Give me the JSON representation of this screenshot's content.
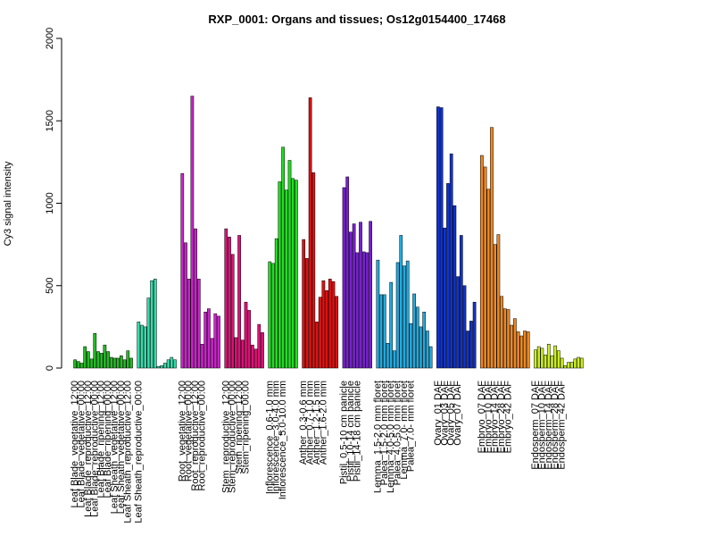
{
  "chart_data": {
    "type": "bar",
    "title": "RXP_0001: Organs and tissues; Os12g0154400_17468",
    "xlabel": "",
    "ylabel": "Cy3 signal intensity",
    "ylim": [
      0,
      2000
    ],
    "yticks": [
      0,
      500,
      1000,
      1500,
      2000
    ],
    "grid": false,
    "legend": "none",
    "groups": [
      {
        "color": "#22bb22",
        "label_stride": 2,
        "values": [
          50,
          40,
          30,
          130,
          100,
          55,
          210,
          100,
          90,
          140,
          100,
          65,
          60,
          60,
          75,
          50,
          105,
          60
        ],
        "labels": [
          "Leaf Blade_vegetative_12:00",
          "Leaf Blade_vegetative_00:00",
          "Leaf Blade_reproductive_12:00",
          "Leaf Blade_reproductive_00:00",
          "Leaf Blade_ripening_12:00",
          "Leaf Blade_ripening_00:00",
          "Leaf Sheath_vegetative_12:00",
          "Leaf Sheath_vegetative_00:00",
          "Leaf Sheath_reproductive_12:00"
        ]
      },
      {
        "color": "#33ddaa",
        "label_stride": 2,
        "values": [
          280,
          260,
          250,
          425,
          530,
          540,
          10,
          15,
          30,
          50,
          65,
          50
        ],
        "labels": [
          "Leaf Sheath_reproductive_00:00"
        ]
      },
      {
        "color": "#cc22cc",
        "label_stride": 2,
        "values": [
          1180,
          760,
          540,
          1650,
          845,
          540,
          145,
          340,
          360,
          180,
          330,
          315
        ],
        "labels": [
          "Root_vegetative_12:00",
          "Root_vegetative_00:00",
          "Root_reproductive_12:00",
          "Root_reproductive_00:00"
        ]
      },
      {
        "color": "#dd1177",
        "label_stride": 2,
        "values": [
          845,
          795,
          690,
          185,
          805,
          170,
          400,
          350,
          140,
          115,
          265,
          215
        ],
        "labels": [
          "Stem_reproductive_12:00",
          "Stem_reproductive_00:00",
          "Stem_ripening_12:00",
          "Stem_ripening_00:00"
        ]
      },
      {
        "color": "#22dd22",
        "label_stride": 2,
        "values": [
          645,
          635,
          785,
          1130,
          1340,
          1080,
          1260,
          1150,
          1140
        ],
        "labels": [
          "Inflorescence_0.6-1.0 mm",
          "Inflorescence_3.0-4.0 mm",
          "Inflorescence_5.0-10.0 mm"
        ]
      },
      {
        "color": "#dd1111",
        "label_stride": 2,
        "values": [
          780,
          665,
          1640,
          1185,
          280,
          430,
          530,
          470,
          540,
          525,
          435
        ],
        "labels": [
          "Anther_0.3-0.6 mm",
          "Anther_0.7-1.0 mm",
          "Anther_1.2-1.5 mm",
          "Anther_1.6-2.0 mm"
        ]
      },
      {
        "color": "#7722cc",
        "label_stride": 2,
        "values": [
          1095,
          1160,
          825,
          875,
          700,
          885,
          705,
          700,
          890
        ],
        "labels": [
          "Pistil_0.5-10 cm panicle",
          "Pistil_10-14 cm panicle",
          "Pistil_14-18 cm panicle"
        ]
      },
      {
        "color": "#22aadd",
        "label_stride": 2,
        "values": [
          655,
          445,
          445,
          150,
          520,
          105,
          640,
          805,
          620,
          650,
          270,
          450,
          370,
          250,
          340,
          225,
          130
        ],
        "labels": [
          "Lemma_1.5-2.0 mm floret",
          "Palea_1.5-2.0 mm floret",
          "Lemma_4.0-5.0 mm floret",
          "Palea_4.0-5.0 mm floret",
          "Lemma_7.0- mm floret",
          "Palea_7.0- mm floret"
        ]
      },
      {
        "color": "#1133cc",
        "label_stride": 2,
        "values": [
          1585,
          1580,
          850,
          1120,
          1300,
          985,
          555,
          805,
          500,
          225,
          285,
          400
        ],
        "labels": [
          "Ovary_01 DAF",
          "Ovary_03 DAF",
          "Ovary_05 DAF",
          "Ovary_07 DAF"
        ]
      },
      {
        "color": "#ee8822",
        "label_stride": 2,
        "values": [
          1290,
          1220,
          1085,
          1460,
          750,
          810,
          435,
          360,
          355,
          260,
          300,
          220,
          195,
          225,
          220
        ],
        "labels": [
          "Embryo_07 DAF",
          "Embryo_10 DAF",
          "Embryo_14 DAF",
          "Embryo_28 DAF",
          "Embryo_42 DAF"
        ]
      },
      {
        "color": "#ccee22",
        "label_stride": 2,
        "values": [
          110,
          130,
          120,
          80,
          145,
          75,
          135,
          105,
          60,
          15,
          35,
          35,
          55,
          65,
          60
        ],
        "labels": [
          "Endosperm_07 DAF",
          "Endosperm_10 DAF",
          "Endosperm_14 DAF",
          "Endosperm_28 DAF",
          "Endosperm_42 DAF"
        ]
      }
    ]
  }
}
